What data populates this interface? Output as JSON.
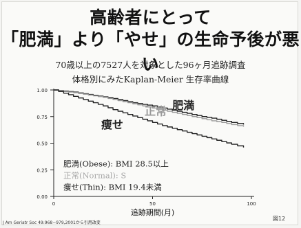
{
  "slide": {
    "title_line1": "高齢者にとって",
    "title_line2": "「肥満」より「やせ」の生命予後が悪い",
    "subtitle_line1": "70歳以上の7527人を対象とした96ヶ月追跡調査",
    "subtitle_line2": "体格別にみたKaplan-Meier 生存率曲線",
    "citation": "J Am Geriatr Soc 49:968−979,2001から引用改変",
    "figure_number": "図12"
  },
  "chart_data": {
    "type": "line",
    "xlabel": "追跡期間(月)",
    "ylabel": "",
    "xlim": [
      0,
      100
    ],
    "ylim": [
      0,
      1.0
    ],
    "x_ticks": [
      "0",
      "50",
      "100"
    ],
    "y_ticks": [
      "1.00",
      "0.75",
      "0.50",
      "0.25",
      "0.00"
    ],
    "grid": false,
    "series": [
      {
        "name": "肥満",
        "color": "#222222",
        "x": [
          0,
          5,
          10,
          15,
          20,
          25,
          30,
          35,
          40,
          45,
          50,
          55,
          60,
          65,
          70,
          75,
          80,
          85,
          90,
          96
        ],
        "values": [
          1.0,
          0.99,
          0.98,
          0.965,
          0.95,
          0.935,
          0.92,
          0.9,
          0.88,
          0.865,
          0.85,
          0.83,
          0.81,
          0.79,
          0.77,
          0.75,
          0.735,
          0.715,
          0.695,
          0.675
        ]
      },
      {
        "name": "正常",
        "color": "#9a9a9a",
        "x": [
          0,
          5,
          10,
          15,
          20,
          25,
          30,
          35,
          40,
          45,
          50,
          55,
          60,
          65,
          70,
          75,
          80,
          85,
          90,
          96
        ],
        "values": [
          1.0,
          0.985,
          0.975,
          0.96,
          0.945,
          0.93,
          0.91,
          0.89,
          0.87,
          0.85,
          0.83,
          0.81,
          0.79,
          0.77,
          0.75,
          0.73,
          0.71,
          0.695,
          0.675,
          0.655
        ]
      },
      {
        "name": "痩せ",
        "color": "#222222",
        "x": [
          0,
          5,
          10,
          15,
          20,
          25,
          30,
          35,
          40,
          45,
          50,
          55,
          60,
          65,
          70,
          75,
          80,
          85,
          90,
          96
        ],
        "values": [
          1.0,
          0.97,
          0.94,
          0.91,
          0.88,
          0.85,
          0.815,
          0.785,
          0.755,
          0.725,
          0.695,
          0.665,
          0.64,
          0.615,
          0.59,
          0.565,
          0.54,
          0.515,
          0.49,
          0.46
        ]
      }
    ],
    "legend": [
      {
        "label": "肥満(Obese): BMI 28.5以上",
        "color": "#222222"
      },
      {
        "label": "正常(Normal): S",
        "color": "#a8a8a8"
      },
      {
        "label": "痩せ(Thin): BMI 19.4未満",
        "color": "#222222"
      }
    ]
  }
}
